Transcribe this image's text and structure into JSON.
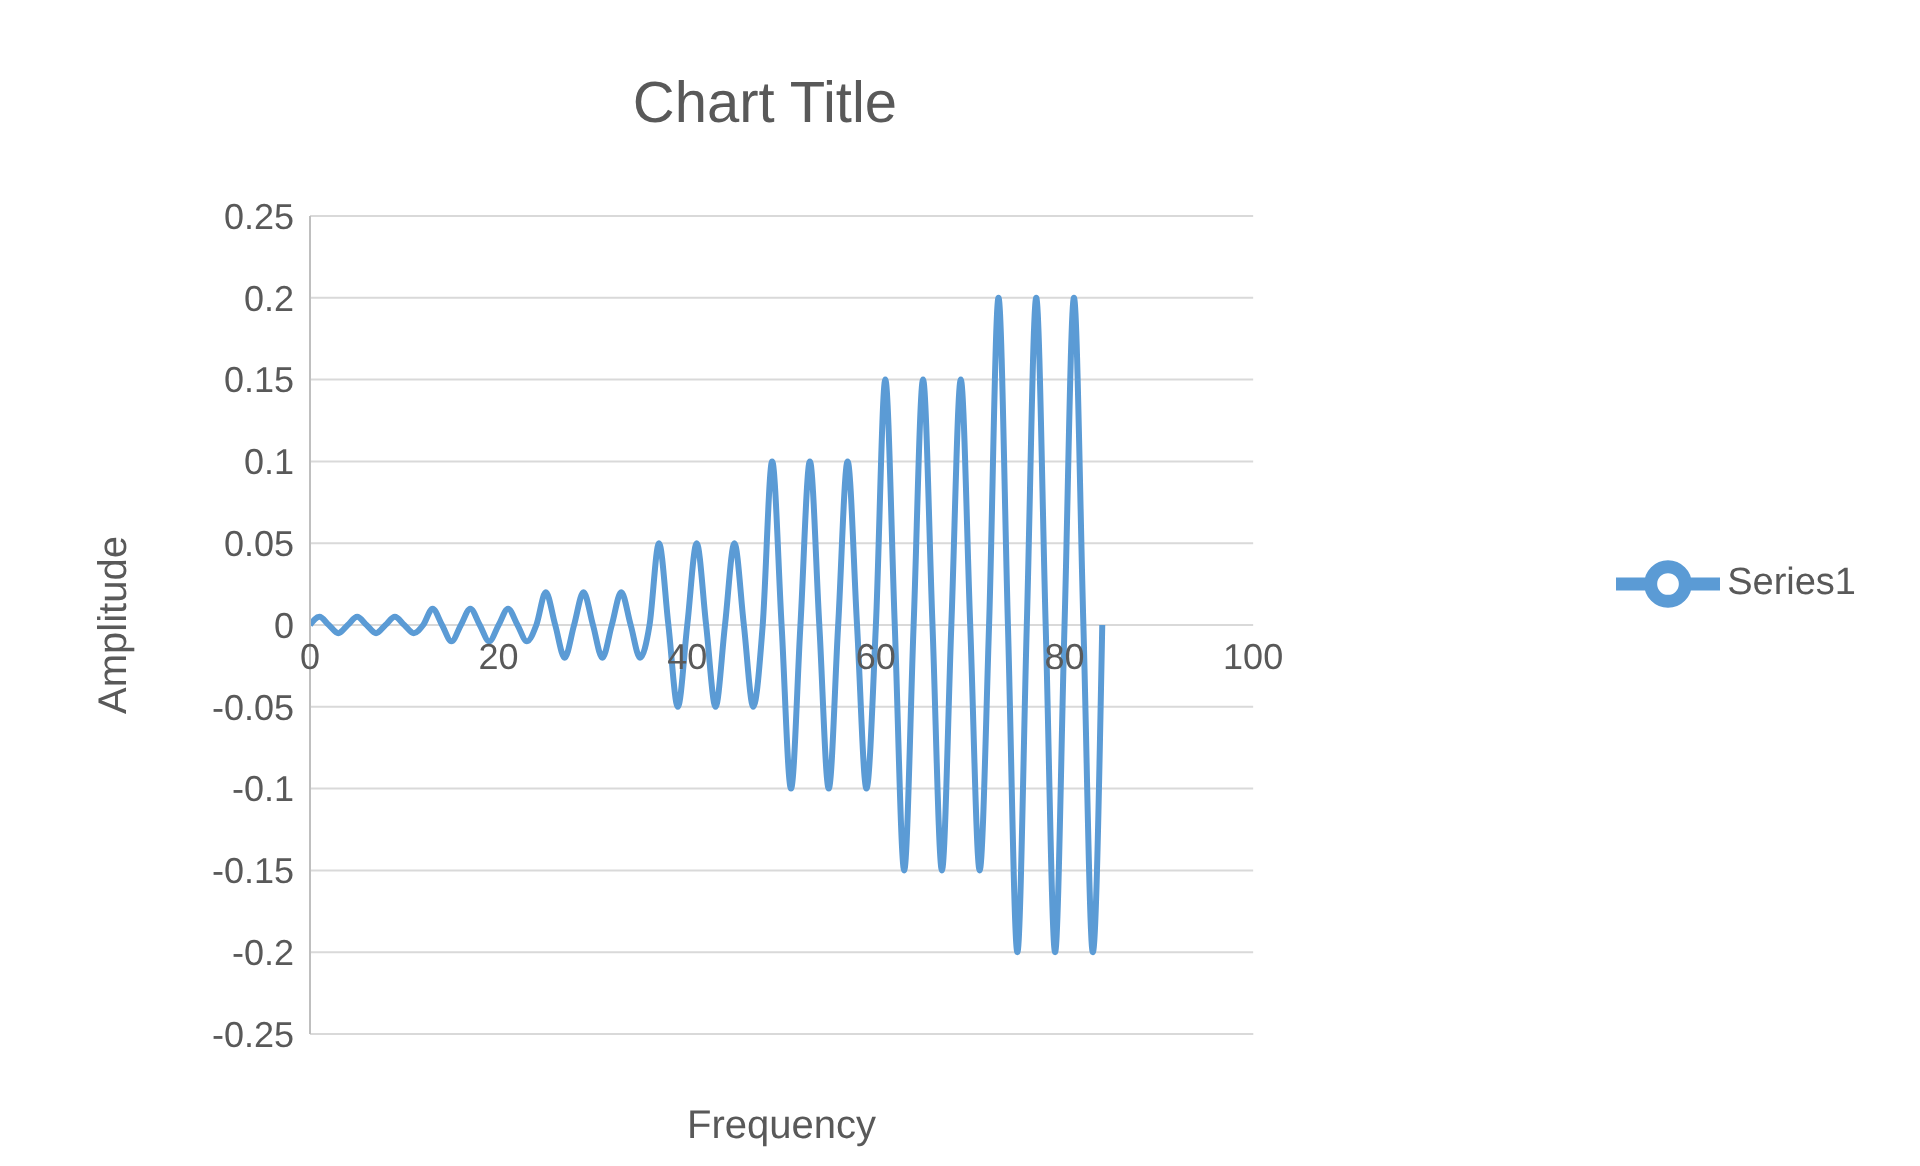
{
  "chart_data": {
    "type": "line",
    "title": "Chart Title",
    "xlabel": "Frequency",
    "ylabel": "Amplitude",
    "x": [
      0,
      1,
      2,
      3,
      4,
      5,
      6,
      7,
      8,
      9,
      10,
      11,
      12,
      13,
      14,
      15,
      16,
      17,
      18,
      19,
      20,
      21,
      22,
      23,
      24,
      25,
      26,
      27,
      28,
      29,
      30,
      31,
      32,
      33,
      34,
      35,
      36,
      37,
      38,
      39,
      40,
      41,
      42,
      43,
      44,
      45,
      46,
      47,
      48,
      49,
      50,
      51,
      52,
      53,
      54,
      55,
      56,
      57,
      58,
      59,
      60,
      61,
      62,
      63,
      64,
      65,
      66,
      67,
      68,
      69,
      70,
      71,
      72,
      73,
      74,
      75,
      76,
      77,
      78,
      79,
      80,
      81,
      82,
      83,
      84
    ],
    "series": [
      {
        "name": "Series1",
        "color": "#5b9bd5",
        "values": [
          0,
          0.005,
          0,
          -0.005,
          0,
          0.005,
          0,
          -0.005,
          0,
          0.005,
          0,
          -0.005,
          0,
          0.01,
          0,
          -0.01,
          0,
          0.01,
          0,
          -0.01,
          0,
          0.01,
          0,
          -0.01,
          0,
          0.02,
          0,
          -0.02,
          0,
          0.02,
          0,
          -0.02,
          0,
          0.02,
          0,
          -0.02,
          0,
          0.05,
          0,
          -0.05,
          0,
          0.05,
          0,
          -0.05,
          0,
          0.05,
          0,
          -0.05,
          0,
          0.1,
          0,
          -0.1,
          0,
          0.1,
          0,
          -0.1,
          0,
          0.1,
          0,
          -0.1,
          0,
          0.15,
          0,
          -0.15,
          0,
          0.15,
          0,
          -0.15,
          0,
          0.15,
          0,
          -0.15,
          0,
          0.2,
          0,
          -0.2,
          0,
          0.2,
          0,
          -0.2,
          0,
          0.2,
          0,
          -0.2,
          0
        ]
      }
    ],
    "xlim": [
      0,
      100
    ],
    "xticks": [
      0,
      20,
      40,
      60,
      80,
      100
    ],
    "ylim": [
      -0.25,
      0.25
    ],
    "yticks": [
      -0.25,
      -0.2,
      -0.15,
      -0.1,
      -0.05,
      0,
      0.05,
      0.1,
      0.15,
      0.2,
      0.25
    ],
    "grid": "y",
    "legend": "right"
  }
}
